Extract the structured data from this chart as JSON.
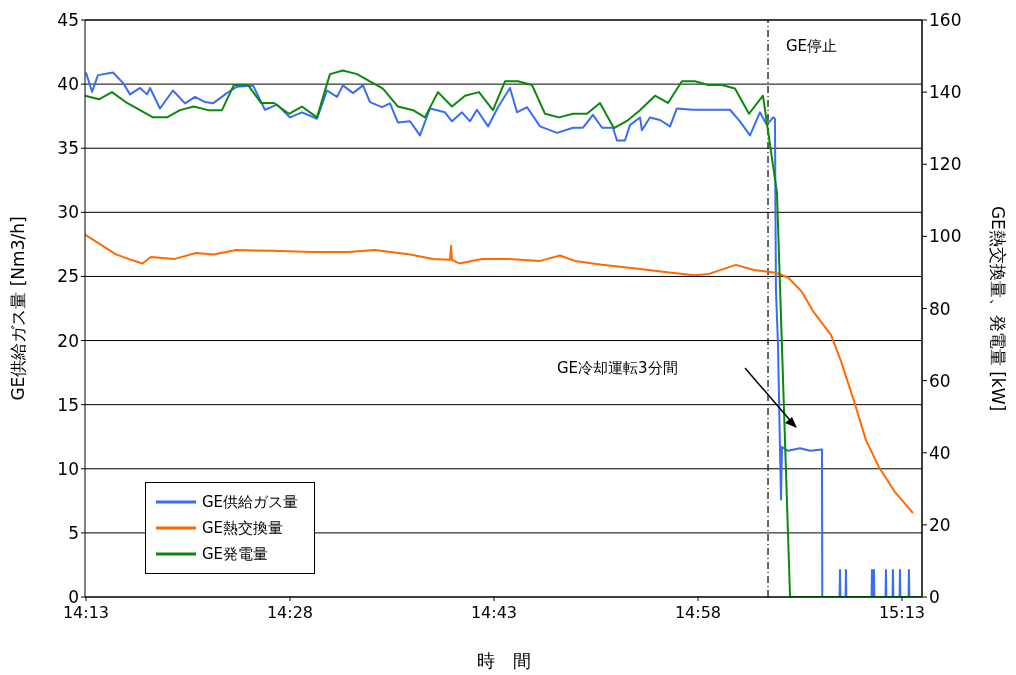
{
  "chart_data": {
    "type": "line",
    "xlabel": "時　間",
    "ylabel": "GE供給ガス量 [Nm3/h]",
    "y2label": "GE熱交換量、発電量 [kW]",
    "xlim": [
      14.2155,
      15.2412
    ],
    "xticks": [
      {
        "value": 14.2167,
        "label": "14:13"
      },
      {
        "value": 14.4667,
        "label": "14:28"
      },
      {
        "value": 14.7167,
        "label": "14:43"
      },
      {
        "value": 14.9667,
        "label": "14:58"
      },
      {
        "value": 15.2167,
        "label": "15:13"
      }
    ],
    "ylim": [
      0,
      45
    ],
    "yticks": [
      0,
      5,
      10,
      15,
      20,
      25,
      30,
      35,
      40,
      45
    ],
    "y2lim": [
      0,
      160
    ],
    "y2ticks": [
      0,
      20,
      40,
      60,
      80,
      100,
      120,
      140,
      160
    ],
    "grid": "y",
    "legend": "bottom left",
    "ref_lines": [
      {
        "axis": "x",
        "value": 15.0525,
        "label": "GE停止",
        "line_style": "dashed",
        "color": "#000000"
      }
    ],
    "annotations": [
      "GE冷却運転3分間"
    ],
    "series": [
      {
        "name": "GE供給ガス量",
        "color": "#3a6cf4",
        "axis": "y",
        "x": [
          14.2167,
          14.2241,
          14.2314,
          14.2498,
          14.262,
          14.2707,
          14.2829,
          14.2915,
          14.2952,
          14.3074,
          14.3233,
          14.3381,
          14.3503,
          14.3626,
          14.3723,
          14.3894,
          14.4017,
          14.4213,
          14.436,
          14.4508,
          14.4667,
          14.4814,
          14.4998,
          14.512,
          14.5243,
          14.5316,
          14.5439,
          14.5561,
          14.5647,
          14.5794,
          14.5893,
          14.599,
          14.6138,
          14.626,
          14.6383,
          14.6566,
          14.6652,
          14.6775,
          14.6873,
          14.6958,
          14.7094,
          14.7216,
          14.7363,
          14.7449,
          14.7572,
          14.7731,
          14.7939,
          14.8135,
          14.8258,
          14.838,
          14.8491,
          14.8625,
          14.8674,
          14.8772,
          14.8833,
          14.8956,
          14.898,
          14.9078,
          14.9201,
          14.9324,
          14.9409,
          14.9605,
          14.9814,
          15.0059,
          15.0181,
          15.0304,
          15.0426,
          15.0512,
          15.0586,
          15.061,
          15.0622,
          15.0647,
          15.0684,
          15.0696,
          15.077,
          15.0917,
          15.104,
          15.1186,
          15.119,
          15.1402,
          15.1407,
          15.1412,
          15.1475,
          15.148,
          15.1485,
          15.1794,
          15.1799,
          15.1804,
          15.1818,
          15.1823,
          15.1828,
          15.1965,
          15.197,
          15.1975,
          15.2051,
          15.2056,
          15.2061,
          15.2137,
          15.2142,
          15.2147,
          15.2247,
          15.2252,
          15.2257,
          15.241
        ],
        "values": [
          40.9,
          39.4,
          40.7,
          40.9,
          40.1,
          39.2,
          39.7,
          39.2,
          39.7,
          38.1,
          39.5,
          38.5,
          39,
          38.6,
          38.5,
          39.3,
          39.8,
          39.9,
          38,
          38.4,
          37.4,
          37.8,
          37.3,
          39.5,
          39,
          39.9,
          39.3,
          39.9,
          38.6,
          38.2,
          38.5,
          37,
          37.1,
          36,
          38.1,
          37.8,
          37.1,
          37.8,
          37.1,
          38,
          36.7,
          38.2,
          39.7,
          37.8,
          38.2,
          36.7,
          36.2,
          36.6,
          36.6,
          37.6,
          36.6,
          36.6,
          35.6,
          35.6,
          36.8,
          37.4,
          36.4,
          37.4,
          37.2,
          36.7,
          38.1,
          38,
          38,
          38,
          37.1,
          36,
          37.8,
          36.8,
          37.4,
          37.3,
          24,
          19.7,
          7.6,
          11.7,
          11.4,
          11.6,
          11.4,
          11.5,
          0,
          0,
          2.1,
          0,
          0,
          2.1,
          0,
          0,
          2.1,
          0,
          0,
          2.1,
          0,
          0,
          2.1,
          0,
          0,
          2.1,
          0,
          0,
          2.1,
          0,
          0,
          2.1,
          0,
          0
        ]
      },
      {
        "name": "GE熱交換量",
        "color": "#ff6a00",
        "axis": "y2",
        "x": [
          14.2155,
          14.2314,
          14.2534,
          14.2718,
          14.2859,
          14.2963,
          14.3245,
          14.3515,
          14.3735,
          14.4005,
          14.4446,
          14.4937,
          14.5378,
          14.5708,
          14.6138,
          14.642,
          14.6628,
          14.664,
          14.6653,
          14.6738,
          14.702,
          14.735,
          14.7731,
          14.7976,
          14.8159,
          14.8491,
          14.8932,
          14.9262,
          14.9618,
          14.9802,
          15.0132,
          15.0352,
          15.0622,
          15.077,
          15.0941,
          15.1076,
          15.1296,
          15.1419,
          15.1578,
          15.1725,
          15.1885,
          15.2081,
          15.2301
        ],
        "values": [
          100.5,
          98.2,
          95,
          93.5,
          92.5,
          94.3,
          93.7,
          95.4,
          95,
          96.2,
          96,
          95.7,
          95.7,
          96.2,
          95,
          93.7,
          93.5,
          97.4,
          93.5,
          92.5,
          93.7,
          93.7,
          93.2,
          94.7,
          93.2,
          92.1,
          91,
          90.1,
          89.2,
          89.6,
          92.1,
          90.7,
          89.9,
          88.6,
          84.6,
          79.3,
          72.7,
          65.4,
          54.4,
          43.5,
          36,
          29.1,
          23.3
        ]
      },
      {
        "name": "GE発電量",
        "color": "#0a8a0a",
        "axis": "y2",
        "x": [
          14.2155,
          14.2326,
          14.2486,
          14.267,
          14.2988,
          14.316,
          14.3319,
          14.349,
          14.3662,
          14.3834,
          14.398,
          14.4152,
          14.4312,
          14.4471,
          14.4654,
          14.4813,
          14.4998,
          14.5157,
          14.5316,
          14.5488,
          14.5647,
          14.5806,
          14.599,
          14.6175,
          14.6321,
          14.648,
          14.6652,
          14.6812,
          14.6983,
          14.7154,
          14.7302,
          14.7461,
          14.7632,
          14.7792,
          14.7964,
          14.8135,
          14.8306,
          14.8466,
          14.8637,
          14.8796,
          14.8956,
          14.914,
          14.9299,
          14.947,
          14.963,
          14.9789,
          14.9961,
          15.012,
          15.0292,
          15.0463,
          15.0635,
          15.0795,
          15.241
        ],
        "values": [
          139,
          138,
          140,
          137,
          133,
          133,
          135,
          136,
          135,
          135,
          142,
          142,
          137,
          137,
          134,
          136,
          133,
          145,
          146,
          145,
          143,
          141,
          136,
          135,
          133,
          140,
          136,
          139,
          140,
          135,
          143,
          143,
          142,
          134,
          133,
          134,
          134,
          137,
          130,
          132,
          135,
          139,
          137,
          143,
          143,
          142,
          142,
          141,
          134,
          139,
          112,
          0,
          0
        ]
      }
    ]
  }
}
